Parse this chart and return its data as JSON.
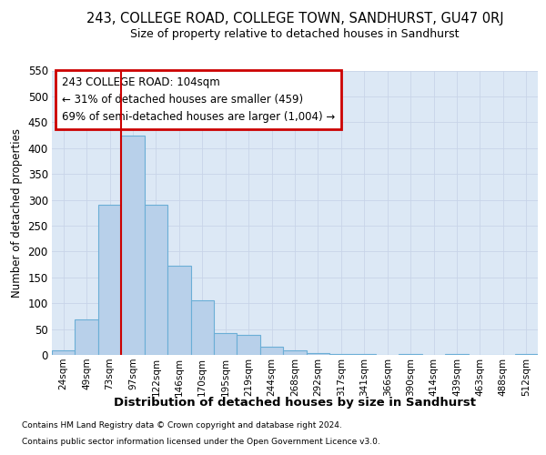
{
  "title": "243, COLLEGE ROAD, COLLEGE TOWN, SANDHURST, GU47 0RJ",
  "subtitle": "Size of property relative to detached houses in Sandhurst",
  "xlabel": "Distribution of detached houses by size in Sandhurst",
  "ylabel": "Number of detached properties",
  "footnote1": "Contains HM Land Registry data © Crown copyright and database right 2024.",
  "footnote2": "Contains public sector information licensed under the Open Government Licence v3.0.",
  "annotation_line1": "243 COLLEGE ROAD: 104sqm",
  "annotation_line2": "← 31% of detached houses are smaller (459)",
  "annotation_line3": "69% of semi-detached houses are larger (1,004) →",
  "bar_labels": [
    "24sqm",
    "49sqm",
    "73sqm",
    "97sqm",
    "122sqm",
    "146sqm",
    "170sqm",
    "195sqm",
    "219sqm",
    "244sqm",
    "268sqm",
    "292sqm",
    "317sqm",
    "341sqm",
    "366sqm",
    "390sqm",
    "414sqm",
    "439sqm",
    "463sqm",
    "488sqm",
    "512sqm"
  ],
  "bar_values": [
    8,
    68,
    290,
    425,
    290,
    172,
    105,
    42,
    38,
    15,
    8,
    4,
    2,
    1,
    0,
    2,
    0,
    1,
    0,
    0,
    2
  ],
  "bar_color": "#b8d0ea",
  "bar_edge_color": "#6baed6",
  "grid_color": "#c8d4e8",
  "vline_color": "#cc0000",
  "box_edge_color": "#cc0000",
  "bg_color": "#dce8f5",
  "yticks": [
    0,
    50,
    100,
    150,
    200,
    250,
    300,
    350,
    400,
    450,
    500,
    550
  ],
  "ylim": [
    0,
    550
  ],
  "vline_index": 3,
  "bin_width": 1
}
